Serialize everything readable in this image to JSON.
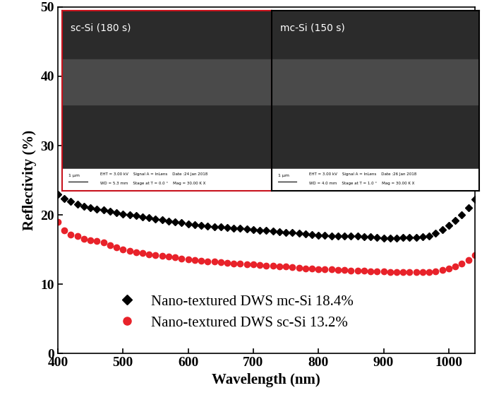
{
  "chart_data": {
    "type": "scatter",
    "x_label": "Wavelength (nm)",
    "y_label": "Reflectivity (%)",
    "x": [
      400,
      410,
      420,
      430,
      440,
      450,
      460,
      470,
      480,
      490,
      500,
      510,
      520,
      530,
      540,
      550,
      560,
      570,
      580,
      590,
      600,
      610,
      620,
      630,
      640,
      650,
      660,
      670,
      680,
      690,
      700,
      710,
      720,
      730,
      740,
      750,
      760,
      770,
      780,
      790,
      800,
      810,
      820,
      830,
      840,
      850,
      860,
      870,
      880,
      890,
      900,
      910,
      920,
      930,
      940,
      950,
      960,
      970,
      980,
      990,
      1000,
      1010,
      1020,
      1030,
      1040
    ],
    "series": [
      {
        "name": "Nano-textured DWS mc-Si 18.4%",
        "color": "#000000",
        "marker": "diamond",
        "line_style": "none",
        "values": [
          23.0,
          22.4,
          21.9,
          21.5,
          21.2,
          21.0,
          20.8,
          20.7,
          20.5,
          20.3,
          20.1,
          20.0,
          19.9,
          19.7,
          19.6,
          19.4,
          19.3,
          19.1,
          19.0,
          18.9,
          18.7,
          18.6,
          18.5,
          18.4,
          18.3,
          18.3,
          18.2,
          18.1,
          18.1,
          18.0,
          17.9,
          17.8,
          17.8,
          17.7,
          17.6,
          17.5,
          17.5,
          17.4,
          17.3,
          17.2,
          17.1,
          17.1,
          17.0,
          17.0,
          16.9,
          16.9,
          16.9,
          16.8,
          16.8,
          16.7,
          16.6,
          16.6,
          16.6,
          16.7,
          16.7,
          16.7,
          16.8,
          17.0,
          17.4,
          17.9,
          18.5,
          19.2,
          20.0,
          21.0,
          22.3
        ]
      },
      {
        "name": "Nano-textured DWS sc-Si 13.2%",
        "color": "#e8222a",
        "marker": "circle",
        "line_style": "none",
        "values": [
          19.0,
          17.8,
          17.2,
          16.9,
          16.5,
          16.3,
          16.2,
          16.0,
          15.6,
          15.3,
          15.0,
          14.8,
          14.6,
          14.5,
          14.3,
          14.2,
          14.1,
          14.0,
          13.9,
          13.7,
          13.6,
          13.5,
          13.4,
          13.3,
          13.3,
          13.2,
          13.1,
          13.0,
          13.0,
          12.9,
          12.9,
          12.8,
          12.7,
          12.7,
          12.6,
          12.6,
          12.5,
          12.4,
          12.3,
          12.3,
          12.2,
          12.2,
          12.2,
          12.1,
          12.1,
          12.0,
          12.0,
          12.0,
          11.9,
          11.9,
          11.9,
          11.8,
          11.8,
          11.8,
          11.8,
          11.7,
          11.7,
          11.8,
          11.9,
          12.1,
          12.3,
          12.6,
          13.0,
          13.5,
          14.2
        ]
      }
    ],
    "xlim": [
      400,
      1040
    ],
    "xticks": [
      400,
      500,
      600,
      700,
      800,
      900,
      1000
    ],
    "ylim": [
      0,
      50
    ],
    "yticks": [
      0,
      10,
      20,
      30,
      40,
      50
    ],
    "grid": false,
    "legend": "lower center",
    "insets": [
      {
        "label": "sc-Si (180 s)",
        "scale_bar": "1 μm",
        "details": [
          "EHT = 3.00 kV    Signal A = InLens    Date :24 Jan 2018",
          "WD = 5.3 mm    Stage at T = 0.0 °    Mag = 30.00 K X"
        ]
      },
      {
        "label": "mc-Si (150 s)",
        "scale_bar": "1 μm",
        "details": [
          "EHT = 3.00 kV    Signal A = InLens    Date :26 Jan 2018",
          "WD = 4.0 mm    Stage at T = 1.0 °    Mag = 30.00 K X"
        ]
      }
    ]
  }
}
